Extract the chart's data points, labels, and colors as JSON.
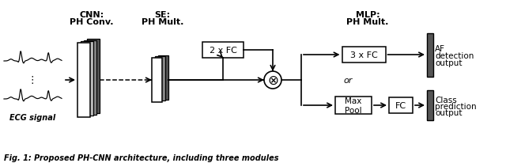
{
  "bg_color": "#ffffff",
  "header_cnn": "CNN:",
  "header_cnn2": "PH Conv.",
  "header_se": "SE:",
  "header_se2": "PH Mult.",
  "header_mlp": "MLP:",
  "header_mlp2": "PH Mult.",
  "label_ecg": "ECG signal",
  "label_2fc": "2 x FC",
  "label_3fc": "3 x FC",
  "label_maxpool": "Max\nPool",
  "label_fc": "FC",
  "label_af": "AF\ndetection\noutput",
  "label_cls": "Class\nprediction\noutput",
  "label_or": "or",
  "caption": "Fig. 1: Proposed PH-CNN architecture, including three modules",
  "ecg_color": "#000000",
  "arrow_color": "#000000",
  "dark_gray": "#555555",
  "mid_gray": "#888888",
  "light_gray": "#bbbbbb"
}
